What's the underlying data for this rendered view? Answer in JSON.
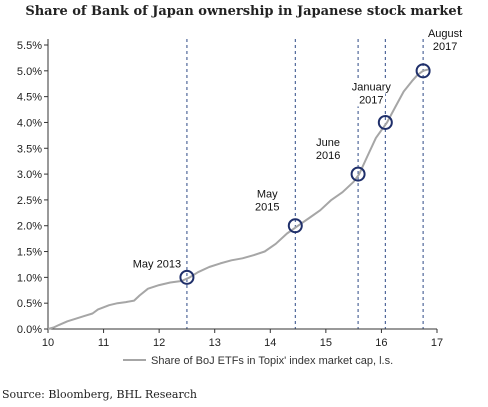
{
  "chart_data": {
    "type": "line",
    "title": "Share of Bank of Japan ownership in Japanese stock market",
    "source": "Source: Bloomberg, BHL Research",
    "xlim": [
      10,
      17
    ],
    "ylim": [
      0,
      5.5
    ],
    "x_ticks": [
      "10",
      "11",
      "12",
      "13",
      "14",
      "15",
      "16",
      "17"
    ],
    "y_ticks": [
      "0.0%",
      "0.5%",
      "1.0%",
      "1.5%",
      "2.0%",
      "2.5%",
      "3.0%",
      "3.5%",
      "4.0%",
      "4.5%",
      "5.0%",
      "5.5%"
    ],
    "grid": false,
    "legend_position": "bottom",
    "series": [
      {
        "name": "Share of BoJ ETFs in Topix' index market cap, l.s.",
        "color": "#a6a6a6",
        "x": [
          10.0,
          10.1,
          10.2,
          10.35,
          10.5,
          10.65,
          10.8,
          10.9,
          11.0,
          11.1,
          11.25,
          11.4,
          11.55,
          11.65,
          11.8,
          12.0,
          12.2,
          12.4,
          12.55,
          12.7,
          12.9,
          13.1,
          13.3,
          13.5,
          13.7,
          13.9,
          14.1,
          14.3,
          14.5,
          14.7,
          14.9,
          15.1,
          15.3,
          15.5,
          15.6,
          15.75,
          15.9,
          16.0,
          16.1,
          16.25,
          16.4,
          16.55,
          16.65,
          16.75,
          16.85
        ],
        "y": [
          0.0,
          0.03,
          0.08,
          0.15,
          0.2,
          0.25,
          0.3,
          0.38,
          0.42,
          0.46,
          0.5,
          0.52,
          0.55,
          0.65,
          0.78,
          0.85,
          0.9,
          0.93,
          1.0,
          1.1,
          1.2,
          1.27,
          1.33,
          1.37,
          1.43,
          1.5,
          1.65,
          1.85,
          2.0,
          2.15,
          2.3,
          2.5,
          2.65,
          2.85,
          3.0,
          3.35,
          3.7,
          3.85,
          4.0,
          4.3,
          4.6,
          4.8,
          4.92,
          5.0,
          5.03
        ]
      }
    ],
    "annotations": [
      {
        "lines": [
          "May 2013"
        ],
        "x": 12.5,
        "y": 1.0
      },
      {
        "lines": [
          "May",
          "2015"
        ],
        "x": 14.45,
        "y": 2.0
      },
      {
        "lines": [
          "June",
          "2016"
        ],
        "x": 15.58,
        "y": 3.0
      },
      {
        "lines": [
          "January",
          "2017"
        ],
        "x": 16.07,
        "y": 4.0
      },
      {
        "lines": [
          "August",
          "2017"
        ],
        "x": 16.75,
        "y": 5.0
      }
    ]
  }
}
